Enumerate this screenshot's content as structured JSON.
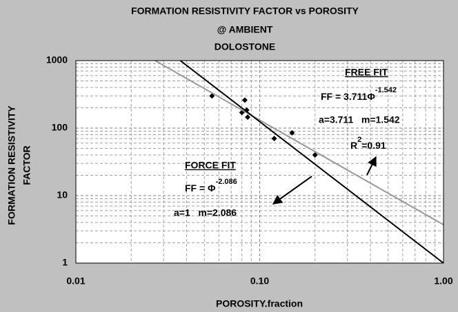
{
  "chart_data": {
    "type": "scatter",
    "title": [
      "FORMATION RESISTIVITY FACTOR vs POROSITY",
      "@ AMBIENT",
      "DOLOSTONE"
    ],
    "x_label": "POROSITY.fraction",
    "y_label": [
      "FORMATION RESISTIVITY",
      "FACTOR"
    ],
    "xlog": true,
    "ylog": true,
    "grid": true,
    "minor_grid": true,
    "xlim": [
      0.01,
      1
    ],
    "ylim": [
      1,
      1000
    ],
    "xticks": [
      {
        "value": 0.01,
        "label": "0.01"
      },
      {
        "value": 0.1,
        "label": "0.10"
      },
      {
        "value": 1,
        "label": "1.00"
      }
    ],
    "yticks": [
      1,
      10,
      100,
      1000
    ],
    "series": [
      {
        "style": "markers",
        "color": "#000000",
        "x": [
          0.055,
          0.08,
          0.083,
          0.085,
          0.086,
          0.12,
          0.15,
          0.2
        ],
        "values": [
          300,
          170,
          260,
          185,
          145,
          70,
          85,
          40
        ]
      },
      {
        "style": "line",
        "color": "#999999",
        "x": [
          0.027,
          1
        ],
        "values": [
          1000,
          3.7
        ]
      },
      {
        "style": "line",
        "color": "#000000",
        "x": [
          0.037,
          1
        ],
        "values": [
          1000,
          1
        ]
      }
    ],
    "annotations": {
      "free_fit": {
        "heading": "FREE FIT",
        "equation": "FF = 3.711Φ",
        "exponent": "-1.542",
        "params": "a=3.711   m=1.542",
        "r": "R",
        "r_sup": "2",
        "r_value": "=0.91"
      },
      "force_fit": {
        "heading": "FORCE FIT",
        "equation": "FF = Φ",
        "exponent": "-2.086",
        "params": "a=1   m=2.086"
      }
    }
  }
}
